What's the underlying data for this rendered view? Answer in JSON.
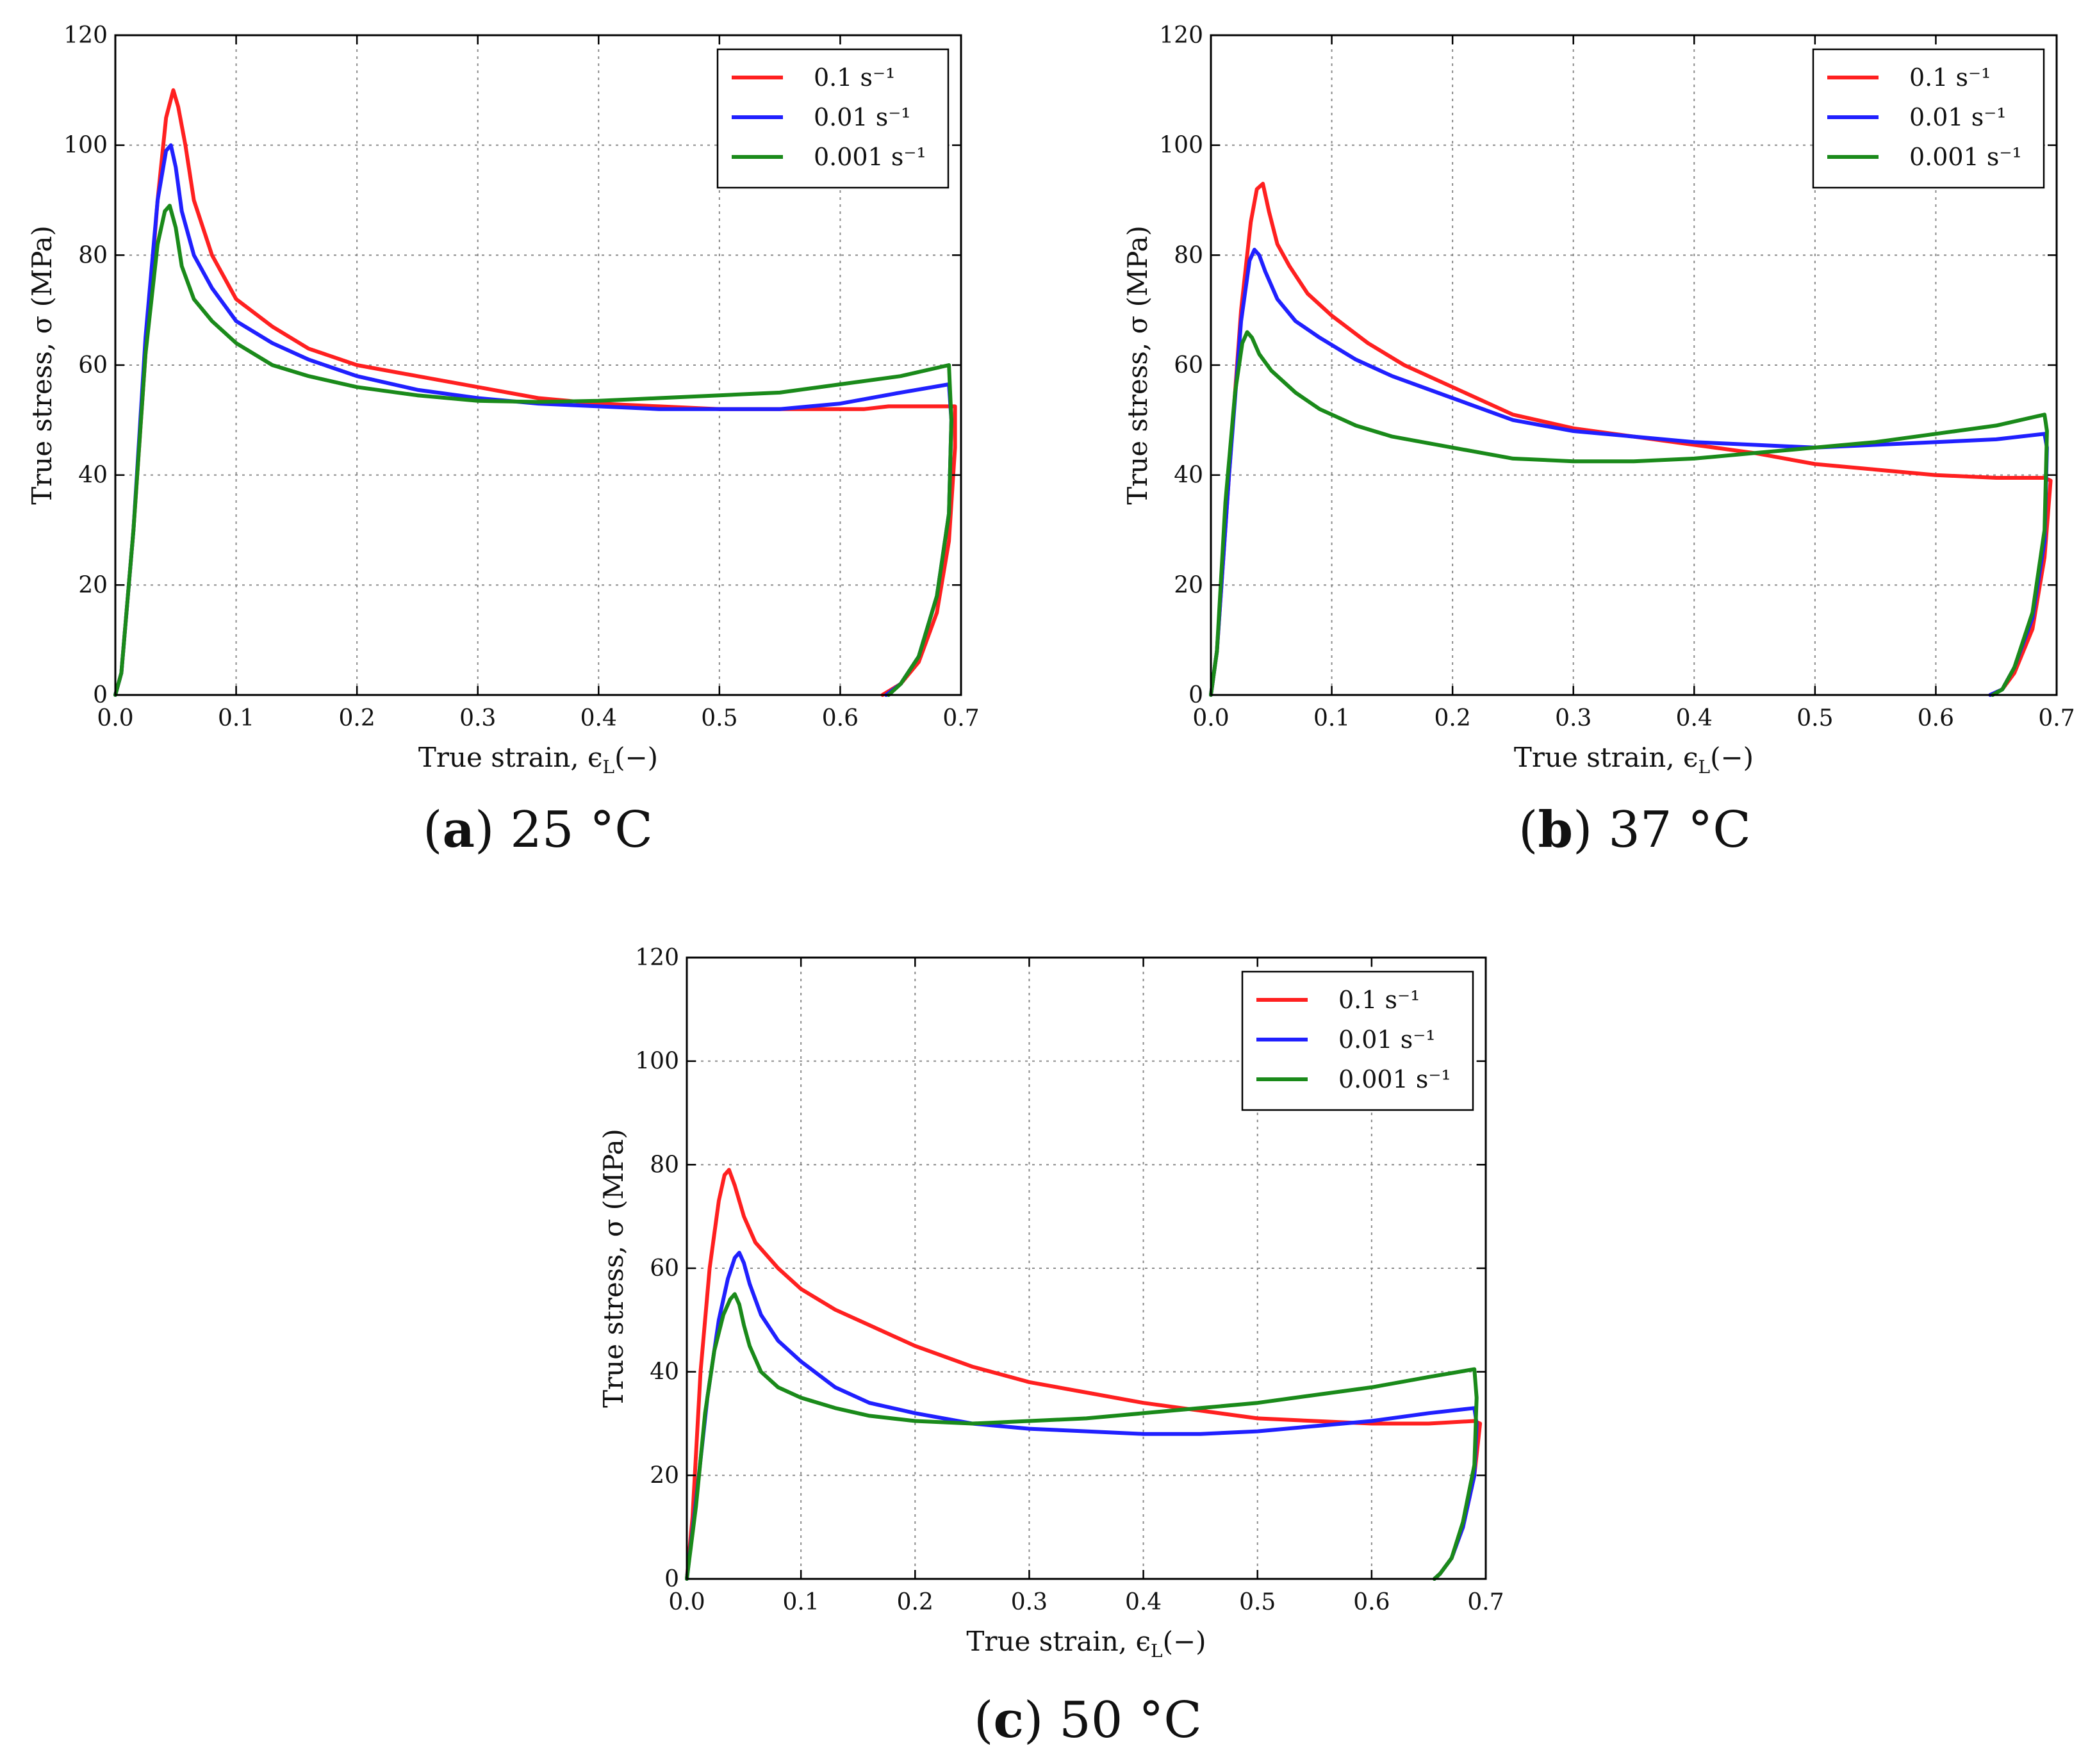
{
  "chart_data": [
    {
      "type": "line",
      "panel_letter": "a",
      "caption": "25 °C",
      "xlabel": "True strain, ϵ",
      "xlabel_sub": "L",
      "xlabel_suffix": "(−)",
      "ylabel": "True stress, σ (MPa)",
      "xlim": [
        0.0,
        0.7
      ],
      "ylim": [
        0,
        120
      ],
      "xticks": [
        "0.0",
        "0.1",
        "0.2",
        "0.3",
        "0.4",
        "0.5",
        "0.6",
        "0.7"
      ],
      "yticks": [
        "0",
        "20",
        "40",
        "60",
        "80",
        "100",
        "120"
      ],
      "grid": true,
      "legend_position": "top-right",
      "series": [
        {
          "name": "0.1 s⁻¹",
          "rate": "0.1",
          "color": "#ff2020",
          "x": [
            0,
            0.005,
            0.015,
            0.025,
            0.035,
            0.042,
            0.048,
            0.052,
            0.058,
            0.065,
            0.08,
            0.1,
            0.13,
            0.16,
            0.2,
            0.25,
            0.3,
            0.35,
            0.4,
            0.45,
            0.5,
            0.55,
            0.6,
            0.62,
            0.64,
            0.66,
            0.68,
            0.69,
            0.695,
            0.695,
            0.69,
            0.68,
            0.665,
            0.65,
            0.635
          ],
          "y": [
            0,
            4,
            30,
            62,
            90,
            105,
            110,
            107,
            100,
            90,
            80,
            72,
            67,
            63,
            60,
            58,
            56,
            54,
            53,
            52.5,
            52,
            52,
            52,
            52,
            52.5,
            52.5,
            52.5,
            52.5,
            52.5,
            45,
            28,
            15,
            6,
            2,
            0
          ]
        },
        {
          "name": "0.01 s⁻¹",
          "rate": "0.01",
          "color": "#2020ff",
          "x": [
            0,
            0.005,
            0.015,
            0.025,
            0.035,
            0.042,
            0.046,
            0.05,
            0.055,
            0.065,
            0.08,
            0.1,
            0.13,
            0.16,
            0.2,
            0.25,
            0.3,
            0.35,
            0.4,
            0.45,
            0.5,
            0.55,
            0.6,
            0.65,
            0.69,
            0.692,
            0.69,
            0.68,
            0.665,
            0.65,
            0.638
          ],
          "y": [
            0,
            4,
            30,
            65,
            90,
            99,
            100,
            96,
            88,
            80,
            74,
            68,
            64,
            61,
            58,
            55.5,
            54,
            53,
            52.5,
            52,
            52,
            52,
            53,
            55,
            56.5,
            50,
            33,
            18,
            7,
            2,
            0
          ]
        },
        {
          "name": "0.001 s⁻¹",
          "rate": "0.001",
          "color": "#1a8a1a",
          "x": [
            0,
            0.005,
            0.015,
            0.025,
            0.035,
            0.041,
            0.045,
            0.05,
            0.055,
            0.065,
            0.08,
            0.1,
            0.13,
            0.16,
            0.2,
            0.25,
            0.3,
            0.35,
            0.4,
            0.45,
            0.5,
            0.55,
            0.6,
            0.65,
            0.69,
            0.692,
            0.69,
            0.68,
            0.665,
            0.65,
            0.64
          ],
          "y": [
            0,
            4,
            30,
            62,
            82,
            88,
            89,
            85,
            78,
            72,
            68,
            64,
            60,
            58,
            56,
            54.5,
            53.5,
            53.3,
            53.5,
            54,
            54.5,
            55,
            56.5,
            58,
            60,
            50,
            33,
            18,
            7,
            2,
            0
          ]
        }
      ]
    },
    {
      "type": "line",
      "panel_letter": "b",
      "caption": "37 °C",
      "xlabel": "True strain, ϵ",
      "xlabel_sub": "L",
      "xlabel_suffix": "(−)",
      "ylabel": "True stress, σ (MPa)",
      "xlim": [
        0.0,
        0.7
      ],
      "ylim": [
        0,
        120
      ],
      "xticks": [
        "0.0",
        "0.1",
        "0.2",
        "0.3",
        "0.4",
        "0.5",
        "0.6",
        "0.7"
      ],
      "yticks": [
        "0",
        "20",
        "40",
        "60",
        "80",
        "100",
        "120"
      ],
      "grid": true,
      "legend_position": "top-right",
      "series": [
        {
          "name": "0.1 s⁻¹",
          "rate": "0.1",
          "color": "#ff2020",
          "x": [
            0,
            0.005,
            0.015,
            0.025,
            0.033,
            0.038,
            0.043,
            0.048,
            0.055,
            0.065,
            0.08,
            0.1,
            0.13,
            0.16,
            0.2,
            0.25,
            0.3,
            0.35,
            0.4,
            0.45,
            0.5,
            0.55,
            0.6,
            0.65,
            0.69,
            0.695,
            0.69,
            0.68,
            0.665,
            0.655,
            0.645
          ],
          "y": [
            0,
            8,
            40,
            70,
            86,
            92,
            93,
            88,
            82,
            78,
            73,
            69,
            64,
            60,
            56,
            51,
            48.5,
            47,
            45.5,
            44,
            42,
            41,
            40,
            39.5,
            39.5,
            39,
            25,
            12,
            4,
            1,
            0
          ]
        },
        {
          "name": "0.01 s⁻¹",
          "rate": "0.01",
          "color": "#2020ff",
          "x": [
            0,
            0.005,
            0.015,
            0.025,
            0.032,
            0.036,
            0.04,
            0.045,
            0.055,
            0.07,
            0.09,
            0.12,
            0.15,
            0.2,
            0.25,
            0.3,
            0.35,
            0.4,
            0.45,
            0.5,
            0.55,
            0.6,
            0.65,
            0.69,
            0.692,
            0.69,
            0.68,
            0.665,
            0.655,
            0.645
          ],
          "y": [
            0,
            8,
            40,
            68,
            79,
            81,
            80,
            77,
            72,
            68,
            65,
            61,
            58,
            54,
            50,
            48,
            47,
            46,
            45.5,
            45,
            45.5,
            46,
            46.5,
            47.5,
            45,
            28,
            14,
            5,
            1,
            0
          ]
        },
        {
          "name": "0.001 s⁻¹",
          "rate": "0.001",
          "color": "#1a8a1a",
          "x": [
            0,
            0.005,
            0.012,
            0.02,
            0.026,
            0.03,
            0.034,
            0.04,
            0.05,
            0.07,
            0.09,
            0.12,
            0.15,
            0.2,
            0.25,
            0.3,
            0.35,
            0.4,
            0.45,
            0.5,
            0.55,
            0.6,
            0.65,
            0.69,
            0.692,
            0.69,
            0.68,
            0.665,
            0.655,
            0.647
          ],
          "y": [
            0,
            8,
            35,
            55,
            64,
            66,
            65,
            62,
            59,
            55,
            52,
            49,
            47,
            45,
            43,
            42.5,
            42.5,
            43,
            44,
            45,
            46,
            47.5,
            49,
            51,
            48,
            30,
            15,
            5,
            1,
            0
          ]
        }
      ]
    },
    {
      "type": "line",
      "panel_letter": "c",
      "caption": "50 °C",
      "xlabel": "True strain, ϵ",
      "xlabel_sub": "L",
      "xlabel_suffix": "(−)",
      "ylabel": "True stress, σ (MPa)",
      "xlim": [
        0.0,
        0.7
      ],
      "ylim": [
        0,
        120
      ],
      "xticks": [
        "0.0",
        "0.1",
        "0.2",
        "0.3",
        "0.4",
        "0.5",
        "0.6",
        "0.7"
      ],
      "yticks": [
        "0",
        "20",
        "40",
        "60",
        "80",
        "100",
        "120"
      ],
      "grid": true,
      "legend_position": "top-right",
      "series": [
        {
          "name": "0.1 s⁻¹",
          "rate": "0.1",
          "color": "#ff2020",
          "x": [
            0,
            0.005,
            0.012,
            0.02,
            0.028,
            0.033,
            0.037,
            0.042,
            0.05,
            0.06,
            0.08,
            0.1,
            0.13,
            0.16,
            0.2,
            0.25,
            0.3,
            0.35,
            0.4,
            0.45,
            0.5,
            0.55,
            0.6,
            0.65,
            0.69,
            0.695,
            0.69,
            0.68,
            0.67,
            0.66,
            0.655
          ],
          "y": [
            0,
            12,
            40,
            60,
            73,
            78,
            79,
            76,
            70,
            65,
            60,
            56,
            52,
            49,
            45,
            41,
            38,
            36,
            34,
            32.5,
            31,
            30.5,
            30,
            30,
            30.5,
            30,
            20,
            10,
            4,
            1,
            0
          ]
        },
        {
          "name": "0.01 s⁻¹",
          "rate": "0.01",
          "color": "#2020ff",
          "x": [
            0,
            0.008,
            0.018,
            0.028,
            0.036,
            0.042,
            0.046,
            0.05,
            0.055,
            0.065,
            0.08,
            0.1,
            0.13,
            0.16,
            0.2,
            0.25,
            0.3,
            0.35,
            0.4,
            0.45,
            0.5,
            0.55,
            0.6,
            0.65,
            0.69,
            0.692,
            0.69,
            0.68,
            0.67,
            0.66,
            0.655
          ],
          "y": [
            0,
            15,
            35,
            50,
            58,
            62,
            63,
            61,
            57,
            51,
            46,
            42,
            37,
            34,
            32,
            30,
            29,
            28.5,
            28,
            28,
            28.5,
            29.5,
            30.5,
            32,
            33,
            30,
            20,
            10,
            4,
            1,
            0
          ]
        },
        {
          "name": "0.001 s⁻¹",
          "rate": "0.001",
          "color": "#1a8a1a",
          "x": [
            0,
            0.008,
            0.016,
            0.024,
            0.032,
            0.038,
            0.042,
            0.046,
            0.05,
            0.055,
            0.065,
            0.08,
            0.1,
            0.13,
            0.16,
            0.2,
            0.25,
            0.3,
            0.35,
            0.4,
            0.45,
            0.5,
            0.55,
            0.6,
            0.65,
            0.69,
            0.692,
            0.69,
            0.68,
            0.67,
            0.66,
            0.655
          ],
          "y": [
            0,
            14,
            32,
            44,
            51,
            54,
            55,
            53,
            49,
            45,
            40,
            37,
            35,
            33,
            31.5,
            30.5,
            30,
            30.5,
            31,
            32,
            33,
            34,
            35.5,
            37,
            39,
            40.5,
            35,
            22,
            11,
            4,
            1,
            0
          ]
        }
      ]
    }
  ]
}
